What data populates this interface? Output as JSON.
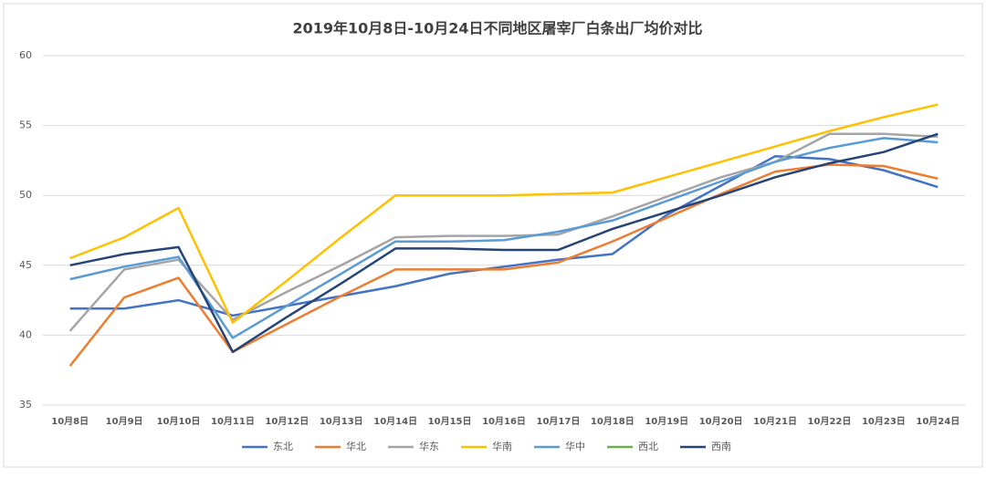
{
  "chart_data": {
    "type": "line",
    "title": "2019年10月8日-10月24日不同地区屠宰厂白条出厂均价对比",
    "categories": [
      "10月8日",
      "10月9日",
      "10月10日",
      "10月11日",
      "10月12日",
      "10月13日",
      "10月14日",
      "10月15日",
      "10月16日",
      "10月17日",
      "10月18日",
      "10月19日",
      "10月20日",
      "10月21日",
      "10月22日",
      "10月23日",
      "10月24日"
    ],
    "series": [
      {
        "name": "东北",
        "color": "#4472c4",
        "values": [
          41.9,
          41.9,
          42.5,
          41.4,
          42.1,
          42.8,
          43.5,
          44.4,
          44.9,
          45.4,
          45.8,
          48.6,
          50.7,
          52.8,
          52.6,
          51.8,
          50.6
        ]
      },
      {
        "name": "华北",
        "color": "#ed7d31",
        "values": [
          37.8,
          42.7,
          44.1,
          38.8,
          40.8,
          42.8,
          44.7,
          44.7,
          44.7,
          45.2,
          46.7,
          48.4,
          50.1,
          51.7,
          52.2,
          52.1,
          51.2
        ]
      },
      {
        "name": "华东",
        "color": "#a5a5a5",
        "values": [
          40.3,
          44.7,
          45.4,
          41.1,
          43.1,
          45.0,
          47.0,
          47.1,
          47.1,
          47.2,
          48.5,
          49.9,
          51.3,
          52.4,
          54.4,
          54.4,
          54.2
        ]
      },
      {
        "name": "华南",
        "color": "#ffc000",
        "values": [
          45.5,
          47.0,
          49.1,
          40.9,
          43.9,
          47.0,
          50.0,
          50.0,
          50.0,
          50.1,
          50.2,
          51.3,
          52.4,
          53.5,
          54.6,
          55.6,
          56.5
        ]
      },
      {
        "name": "华中",
        "color": "#5b9bd5",
        "values": [
          44.0,
          44.9,
          45.6,
          39.8,
          42.1,
          44.4,
          46.7,
          46.7,
          46.8,
          47.4,
          48.2,
          49.6,
          51.0,
          52.4,
          53.4,
          54.1,
          53.8
        ]
      },
      {
        "name": "西北",
        "color": "#70ad47",
        "values": [
          null,
          null,
          null,
          null,
          null,
          null,
          null,
          null,
          null,
          null,
          null,
          null,
          null,
          null,
          null,
          null,
          null
        ]
      },
      {
        "name": "西南",
        "color": "#264478",
        "values": [
          45.0,
          45.8,
          46.3,
          38.8,
          41.3,
          43.7,
          46.2,
          46.2,
          46.1,
          46.1,
          47.6,
          48.8,
          50.0,
          51.3,
          52.3,
          53.1,
          54.4
        ]
      }
    ],
    "ylim": [
      35,
      60
    ],
    "yticks": [
      35,
      40,
      45,
      50,
      55,
      60
    ],
    "grid": true,
    "legend": "bottom"
  }
}
